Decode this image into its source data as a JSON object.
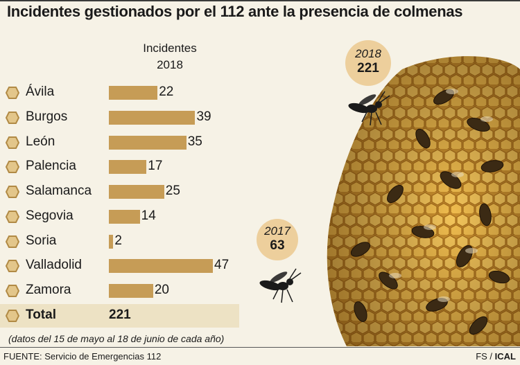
{
  "title": "Incidentes gestionados por el 112 ante la presencia de colmenas",
  "column_header": {
    "line1": "Incidentes",
    "line2": "2018"
  },
  "colors": {
    "bar": "#c69c56",
    "background": "#f6f2e6",
    "total_band": "#ede2c4",
    "bubble": "#edcf9c"
  },
  "chart_data": {
    "type": "bar",
    "orientation": "horizontal",
    "title": "Incidentes gestionados por el 112 ante la presencia de colmenas",
    "series_label": "Incidentes 2018",
    "categories": [
      "Ávila",
      "Burgos",
      "León",
      "Palencia",
      "Salamanca",
      "Segovia",
      "Soria",
      "Valladolid",
      "Zamora"
    ],
    "values": [
      22,
      39,
      35,
      17,
      25,
      14,
      2,
      47,
      20
    ],
    "total": {
      "label": "Total",
      "value": "221"
    },
    "yearly_totals": [
      {
        "year": "2018",
        "value": "221"
      },
      {
        "year": "2017",
        "value": "63"
      }
    ]
  },
  "note": "(datos del 15 de mayo al 18 de junio de cada año)",
  "source": "FUENTE: Servicio de Emergencias 112",
  "credit": {
    "author": "FS",
    "separator": " / ",
    "agency": "ICAL"
  }
}
